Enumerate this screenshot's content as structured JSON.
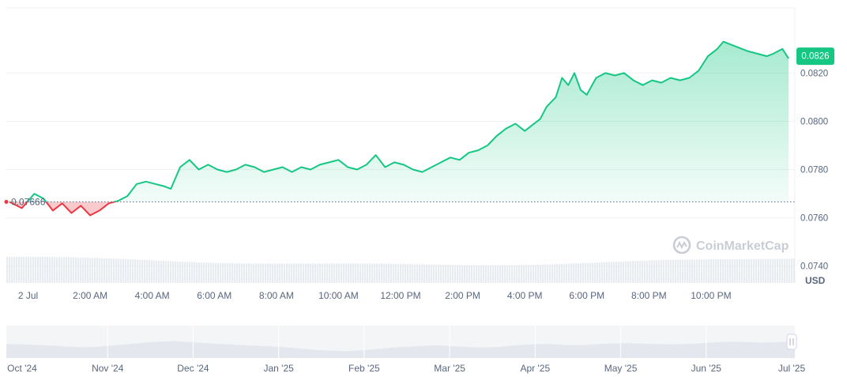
{
  "chart_data": {
    "type": "area",
    "currency": "USD",
    "baseline": 0.07666,
    "baseline_label": "0.07666",
    "current_price_label": "0.0826",
    "ylim": [
      0.0733,
      0.0847
    ],
    "y_ticks": [
      "0.0820",
      "0.0800",
      "0.0780",
      "0.0760",
      "0.0740"
    ],
    "y_tick_values": [
      0.082,
      0.08,
      0.078,
      0.076,
      0.074
    ],
    "x_tick_labels": [
      "2 Jul",
      "2:00 AM",
      "4:00 AM",
      "6:00 AM",
      "8:00 AM",
      "10:00 AM",
      "12:00 PM",
      "2:00 PM",
      "4:00 PM",
      "6:00 PM",
      "8:00 PM",
      "10:00 PM"
    ],
    "x_tick_hours": [
      0,
      2,
      4,
      6,
      8,
      10,
      12,
      14,
      16,
      18,
      20,
      22
    ],
    "x_range_hours": [
      -0.7,
      24.7
    ],
    "series": [
      {
        "x": [
          -0.6,
          -0.2,
          0.2,
          0.5,
          0.8,
          1.1,
          1.4,
          1.7,
          2.0,
          2.3,
          2.6,
          2.9,
          3.2,
          3.5,
          3.8,
          4.1,
          4.4,
          4.6,
          4.9,
          5.2,
          5.5,
          5.8,
          6.1,
          6.4,
          6.7,
          7.0,
          7.3,
          7.6,
          7.9,
          8.2,
          8.5,
          8.8,
          9.1,
          9.4,
          9.7,
          10.0,
          10.3,
          10.6,
          10.9,
          11.2,
          11.5,
          11.8,
          12.1,
          12.4,
          12.7,
          13.0,
          13.3,
          13.6,
          13.9,
          14.2,
          14.5,
          14.8,
          15.1,
          15.4,
          15.7,
          16.0,
          16.2,
          16.5,
          16.7,
          17.0,
          17.2,
          17.4,
          17.6,
          17.8,
          18.0,
          18.3,
          18.6,
          18.9,
          19.2,
          19.5,
          19.8,
          20.1,
          20.4,
          20.7,
          21.0,
          21.3,
          21.6,
          21.9,
          22.2,
          22.4,
          22.6,
          22.8,
          23.0,
          23.2,
          23.5,
          23.8,
          24.0,
          24.3,
          24.5
        ],
        "values": [
          0.07666,
          0.0764,
          0.077,
          0.0768,
          0.0763,
          0.0766,
          0.0762,
          0.0765,
          0.0761,
          0.0763,
          0.0766,
          0.0767,
          0.0769,
          0.0774,
          0.0775,
          0.0774,
          0.0773,
          0.0772,
          0.0781,
          0.0784,
          0.078,
          0.0782,
          0.078,
          0.0779,
          0.078,
          0.0782,
          0.0781,
          0.0779,
          0.078,
          0.0781,
          0.0779,
          0.0781,
          0.078,
          0.0782,
          0.0783,
          0.0784,
          0.0781,
          0.078,
          0.0782,
          0.0786,
          0.0781,
          0.0783,
          0.0782,
          0.078,
          0.0779,
          0.0781,
          0.0783,
          0.0785,
          0.0784,
          0.0787,
          0.0788,
          0.079,
          0.0794,
          0.0797,
          0.0799,
          0.0796,
          0.0798,
          0.0801,
          0.0806,
          0.081,
          0.0818,
          0.0815,
          0.082,
          0.0813,
          0.0811,
          0.0818,
          0.082,
          0.0819,
          0.082,
          0.0817,
          0.0815,
          0.0817,
          0.0816,
          0.0818,
          0.0817,
          0.0818,
          0.0821,
          0.0827,
          0.083,
          0.0833,
          0.0832,
          0.0831,
          0.083,
          0.0829,
          0.0828,
          0.0827,
          0.0828,
          0.083,
          0.0826
        ]
      }
    ],
    "navigator": {
      "labels": [
        "Oct '24",
        "Nov '24",
        "Dec '24",
        "Jan '25",
        "Feb '25",
        "Mar '25",
        "Apr '25",
        "May '25",
        "Jun '25",
        "Jul '25"
      ],
      "values": [
        0.62,
        0.6,
        0.58,
        0.55,
        0.5,
        0.48,
        0.5,
        0.56,
        0.62,
        0.68,
        0.72,
        0.74,
        0.7,
        0.66,
        0.62,
        0.58,
        0.55,
        0.52,
        0.48,
        0.42,
        0.36,
        0.32,
        0.3,
        0.34,
        0.4,
        0.46,
        0.5,
        0.54,
        0.56,
        0.52,
        0.48,
        0.46,
        0.5,
        0.56,
        0.6,
        0.62,
        0.58,
        0.56,
        0.6,
        0.64,
        0.66,
        0.64,
        0.62,
        0.6,
        0.62,
        0.66,
        0.7,
        0.72,
        0.7,
        0.68,
        0.7,
        0.74
      ]
    },
    "watermark": "CoinMarketCap",
    "colors": {
      "up": "#16c784",
      "down": "#ea3943",
      "axis_text": "#58667e",
      "grid": "#eff2f5"
    }
  }
}
